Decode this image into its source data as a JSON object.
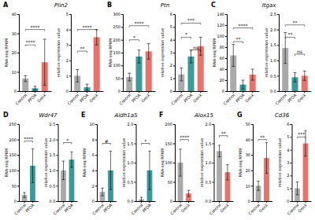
{
  "chart_data": [
    {
      "type": "bar",
      "panel_label": "A",
      "title": "Plin2",
      "ylabel": "RNA-seq RPKM",
      "categories": [
        "Control",
        "PFOA",
        "GenX"
      ],
      "values": [
        6.5,
        1.5,
        15.0
      ],
      "errors": [
        1.5,
        1.0,
        12.0
      ],
      "colors": [
        "#aaaaaa",
        "#3a9a9a",
        "#e8736a"
      ],
      "ylim": [
        0,
        40
      ],
      "yticks": [
        0,
        10,
        20,
        30,
        40
      ],
      "annotations": [
        {
          "from": "Control",
          "to": "PFOA",
          "text": "****",
          "y": 24
        },
        {
          "from": "Control",
          "to": "GenX",
          "text": "****",
          "y": 32
        }
      ]
    },
    {
      "type": "bar",
      "ylabel": "relative expression value",
      "categories": [
        "Control",
        "PFOA",
        "GenX"
      ],
      "values": [
        1.0,
        0.25,
        3.5
      ],
      "errors": [
        0.4,
        0.2,
        0.5
      ],
      "colors": [
        "#aaaaaa",
        "#3a9a9a",
        "#e8736a"
      ],
      "ylim": [
        0,
        5
      ],
      "yticks": [
        0,
        1,
        2,
        3,
        4,
        5
      ],
      "annotations": [
        {
          "from": "Control",
          "to": "PFOA",
          "text": "**",
          "y": 2.6
        },
        {
          "from": "Control",
          "to": "GenX",
          "text": "****",
          "y": 4.0
        }
      ]
    },
    {
      "type": "bar",
      "panel_label": "B",
      "title": "Ptn",
      "ylabel": "RNA-seq RPKM",
      "categories": [
        "Control",
        "PFOA",
        "GenX"
      ],
      "values": [
        55,
        135,
        155
      ],
      "errors": [
        15,
        25,
        30
      ],
      "colors": [
        "#aaaaaa",
        "#3a9a9a",
        "#e8736a"
      ],
      "ylim": [
        0,
        300
      ],
      "yticks": [
        0,
        50,
        100,
        150,
        200,
        250,
        300
      ],
      "annotations": [
        {
          "from": "Control",
          "to": "PFOA",
          "text": "*",
          "y": 200
        },
        {
          "from": "Control",
          "to": "GenX",
          "text": "****",
          "y": 255
        }
      ]
    },
    {
      "type": "bar",
      "ylabel": "relative expression value",
      "categories": [
        "Control",
        "PFOA",
        "GenX"
      ],
      "values": [
        1.3,
        2.7,
        3.5
      ],
      "errors": [
        0.5,
        0.5,
        0.7
      ],
      "colors": [
        "#aaaaaa",
        "#3a9a9a",
        "#e8736a"
      ],
      "ylim": [
        0,
        6
      ],
      "yticks": [
        0,
        1,
        2,
        3,
        4,
        5,
        6
      ],
      "annotations": [
        {
          "from": "Control",
          "to": "PFOA",
          "text": "*",
          "y": 4.2
        },
        {
          "from": "Control",
          "to": "GenX",
          "text": "***",
          "y": 5.3
        },
        {
          "from": "PFOA",
          "to": "GenX",
          "text": "ns",
          "y": 3.2
        }
      ]
    },
    {
      "type": "bar",
      "panel_label": "C",
      "title": "Itgax",
      "ylabel": "RNA-seq RPKM",
      "categories": [
        "Control",
        "PFOA",
        "GenX"
      ],
      "values": [
        65,
        12,
        30
      ],
      "errors": [
        20,
        8,
        10
      ],
      "colors": [
        "#aaaaaa",
        "#3a9a9a",
        "#e8736a"
      ],
      "ylim": [
        0,
        140
      ],
      "yticks": [
        0,
        20,
        40,
        60,
        80,
        100,
        120,
        140
      ],
      "annotations": [
        {
          "from": "Control",
          "to": "PFOA",
          "text": "**",
          "y": 90
        },
        {
          "from": "Control",
          "to": "GenX",
          "text": "****",
          "y": 115
        }
      ]
    },
    {
      "type": "bar",
      "ylabel": "relative expression value",
      "categories": [
        "Control",
        "PFOA",
        "GenX"
      ],
      "values": [
        1.4,
        0.45,
        0.5
      ],
      "errors": [
        0.5,
        0.15,
        0.15
      ],
      "colors": [
        "#aaaaaa",
        "#3a9a9a",
        "#e8736a"
      ],
      "ylim": [
        0,
        2.5
      ],
      "yticks": [
        {
          "value": 0,
          "label": "0.0"
        },
        0.5,
        {
          "value": 1,
          "label": "1.0"
        },
        1.5,
        {
          "value": 2,
          "label": "2.0"
        },
        2.5
      ],
      "annotations": [
        {
          "from": "Control",
          "to": "PFOA",
          "text": "**",
          "y": 1.75
        },
        {
          "from": "Control",
          "to": "GenX",
          "text": "**",
          "y": 2.15
        },
        {
          "from": "PFOA",
          "to": "GenX",
          "text": "ns",
          "y": 1.2
        }
      ]
    },
    {
      "type": "bar",
      "panel_label": "D",
      "title": "Wdr47",
      "ylabel": "RNA-seq RPKM",
      "categories": [
        "Control",
        "PFOA"
      ],
      "values": [
        20,
        115
      ],
      "errors": [
        8,
        55
      ],
      "colors": [
        "#aaaaaa",
        "#3a9a9a"
      ],
      "ylim": [
        0,
        250
      ],
      "yticks": [
        0,
        50,
        100,
        150,
        200,
        250
      ],
      "annotations": [
        {
          "from": "Control",
          "to": "PFOA",
          "text": "****",
          "y": 195
        }
      ]
    },
    {
      "type": "bar",
      "ylabel": "relative expression value",
      "categories": [
        "Control",
        "PFOA"
      ],
      "values": [
        1.0,
        1.35
      ],
      "errors": [
        0.3,
        0.25
      ],
      "colors": [
        "#aaaaaa",
        "#3a9a9a"
      ],
      "ylim": [
        0,
        2.5
      ],
      "yticks": [
        {
          "value": 0,
          "label": "0.0"
        },
        0.5,
        {
          "value": 1,
          "label": "1.0"
        },
        1.5,
        {
          "value": 2,
          "label": "2.0"
        },
        2.5
      ],
      "annotations": [
        {
          "from": "Control",
          "to": "PFOA",
          "text": "*",
          "y": 1.9
        }
      ]
    },
    {
      "type": "bar",
      "panel_label": "E",
      "title": "Aldh1a5",
      "ylabel": "RNA-seq RPKM",
      "categories": [
        "Control",
        "PFOA"
      ],
      "values": [
        1.2,
        4.0
      ],
      "errors": [
        0.5,
        2.5
      ],
      "colors": [
        "#aaaaaa",
        "#3a9a9a"
      ],
      "ylim": [
        0,
        10
      ],
      "yticks": [
        0,
        2,
        4,
        6,
        8,
        10
      ],
      "annotations": [
        {
          "from": "Control",
          "to": "PFOA",
          "text": "#",
          "y": 7.5
        }
      ]
    },
    {
      "type": "bar",
      "ylabel": "relative expression value",
      "categories": [
        "Control",
        "PFOA"
      ],
      "values": [
        0.05,
        0.8
      ],
      "errors": [
        0.05,
        0.5
      ],
      "colors": [
        "#aaaaaa",
        "#3a9a9a"
      ],
      "ylim": [
        0,
        2.0
      ],
      "yticks": [
        {
          "value": 0,
          "label": "0.0"
        },
        0.5,
        {
          "value": 1,
          "label": "1.0"
        },
        1.5,
        {
          "value": 2,
          "label": "2.0"
        }
      ],
      "annotations": [
        {
          "from": "Control",
          "to": "PFOA",
          "text": "*",
          "y": 1.5
        }
      ]
    },
    {
      "type": "bar",
      "panel_label": "F",
      "title": "Alox15",
      "ylabel": "RNA-seq RPKM",
      "categories": [
        "Control",
        "GenX"
      ],
      "values": [
        100,
        20
      ],
      "errors": [
        35,
        8
      ],
      "colors": [
        "#aaaaaa",
        "#e8736a"
      ],
      "ylim": [
        0,
        200
      ],
      "yticks": [
        0,
        50,
        100,
        150,
        200
      ],
      "annotations": [
        {
          "from": "Control",
          "to": "GenX",
          "text": "****",
          "y": 160
        }
      ]
    },
    {
      "type": "bar",
      "ylabel": "relative expression value",
      "categories": [
        "Control",
        "GenX"
      ],
      "values": [
        1.3,
        0.75
      ],
      "errors": [
        0.15,
        0.2
      ],
      "colors": [
        "#aaaaaa",
        "#e8736a"
      ],
      "ylim": [
        0,
        2.0
      ],
      "yticks": [
        {
          "value": 0,
          "label": "0.0"
        },
        0.5,
        {
          "value": 1,
          "label": "1.0"
        },
        1.5,
        {
          "value": 2,
          "label": "2.0"
        }
      ],
      "annotations": [
        {
          "from": "Control",
          "to": "GenX",
          "text": "**",
          "y": 1.7
        }
      ]
    },
    {
      "type": "bar",
      "panel_label": "G",
      "title": "Cd36",
      "ylabel": "RNA-seq RPKM",
      "categories": [
        "Control",
        "GenX"
      ],
      "values": [
        10,
        28
      ],
      "errors": [
        3,
        10
      ],
      "colors": [
        "#aaaaaa",
        "#e8736a"
      ],
      "ylim": [
        0,
        50
      ],
      "yticks": [
        0,
        10,
        20,
        30,
        40,
        50
      ],
      "annotations": [
        {
          "from": "Control",
          "to": "GenX",
          "text": "**",
          "y": 40
        }
      ]
    },
    {
      "type": "bar",
      "ylabel": "relative expression value",
      "categories": [
        "Control",
        "GenX"
      ],
      "values": [
        1.0,
        4.5
      ],
      "errors": [
        0.5,
        1.0
      ],
      "colors": [
        "#aaaaaa",
        "#e8736a"
      ],
      "ylim": [
        0,
        6
      ],
      "yticks": [
        0,
        1,
        2,
        3,
        4,
        5,
        6
      ],
      "annotations": [
        {
          "from": "Control",
          "to": "GenX",
          "text": "***",
          "y": 5.0
        }
      ]
    }
  ]
}
